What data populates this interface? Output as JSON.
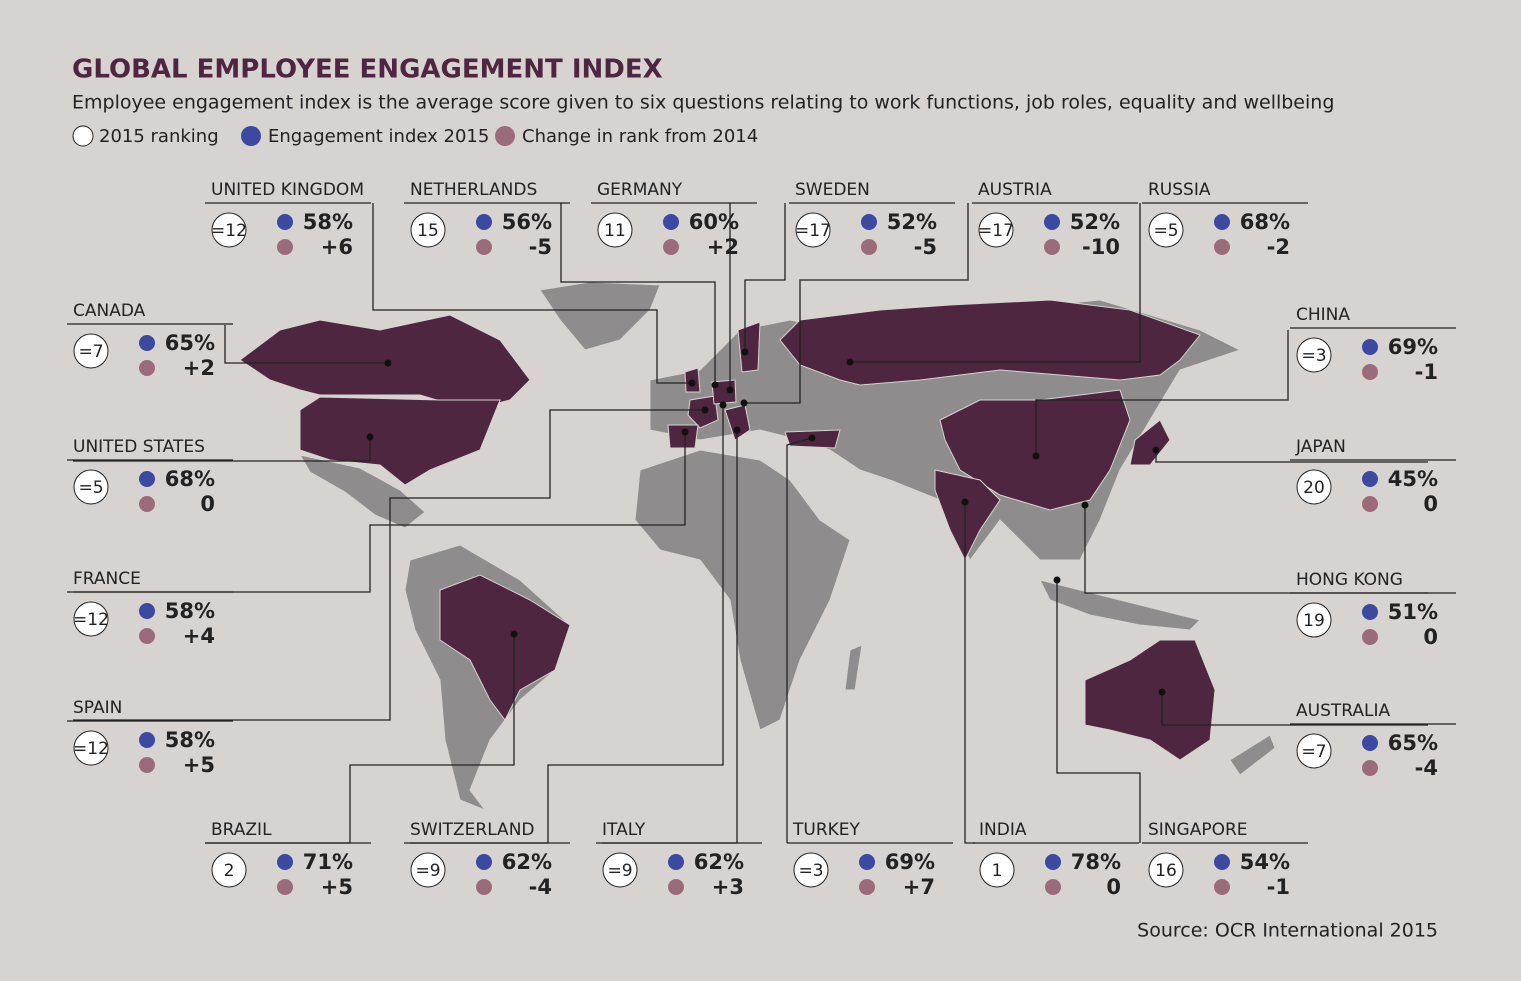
{
  "header": {
    "title": "GLOBAL EMPLOYEE ENGAGEMENT INDEX",
    "subtitle": "Employee engagement index is the average score given to six questions relating to work functions, job roles, equality and wellbeing"
  },
  "legend": [
    "2015 ranking",
    "Engagement index 2015",
    "Change in rank from 2014"
  ],
  "countries": [
    {
      "name": "UNITED KINGDOM",
      "rank": "=12",
      "index": "58%",
      "change": "+6"
    },
    {
      "name": "NETHERLANDS",
      "rank": "15",
      "index": "56%",
      "change": "-5"
    },
    {
      "name": "GERMANY",
      "rank": "11",
      "index": "60%",
      "change": "+2"
    },
    {
      "name": "SWEDEN",
      "rank": "=17",
      "index": "52%",
      "change": "-5"
    },
    {
      "name": "AUSTRIA",
      "rank": "=17",
      "index": "52%",
      "change": "-10"
    },
    {
      "name": "RUSSIA",
      "rank": "=5",
      "index": "68%",
      "change": "-2"
    },
    {
      "name": "CANADA",
      "rank": "=7",
      "index": "65%",
      "change": "+2"
    },
    {
      "name": "CHINA",
      "rank": "=3",
      "index": "69%",
      "change": "-1"
    },
    {
      "name": "UNITED STATES",
      "rank": "=5",
      "index": "68%",
      "change": "0"
    },
    {
      "name": "JAPAN",
      "rank": "20",
      "index": "45%",
      "change": "0"
    },
    {
      "name": "FRANCE",
      "rank": "=12",
      "index": "58%",
      "change": "+4"
    },
    {
      "name": "HONG KONG",
      "rank": "19",
      "index": "51%",
      "change": "0"
    },
    {
      "name": "SPAIN",
      "rank": "=12",
      "index": "58%",
      "change": "+5"
    },
    {
      "name": "AUSTRALIA",
      "rank": "=7",
      "index": "65%",
      "change": "-4"
    },
    {
      "name": "BRAZIL",
      "rank": "2",
      "index": "71%",
      "change": "+5"
    },
    {
      "name": "SWITZERLAND",
      "rank": "=9",
      "index": "62%",
      "change": "-4"
    },
    {
      "name": "ITALY",
      "rank": "=9",
      "index": "62%",
      "change": "+3"
    },
    {
      "name": "TURKEY",
      "rank": "=3",
      "index": "69%",
      "change": "+7"
    },
    {
      "name": "INDIA",
      "rank": "1",
      "index": "78%",
      "change": "0"
    },
    {
      "name": "SINGAPORE",
      "rank": "16",
      "index": "54%",
      "change": "-1"
    }
  ],
  "source": "Source: OCR International 2015"
}
